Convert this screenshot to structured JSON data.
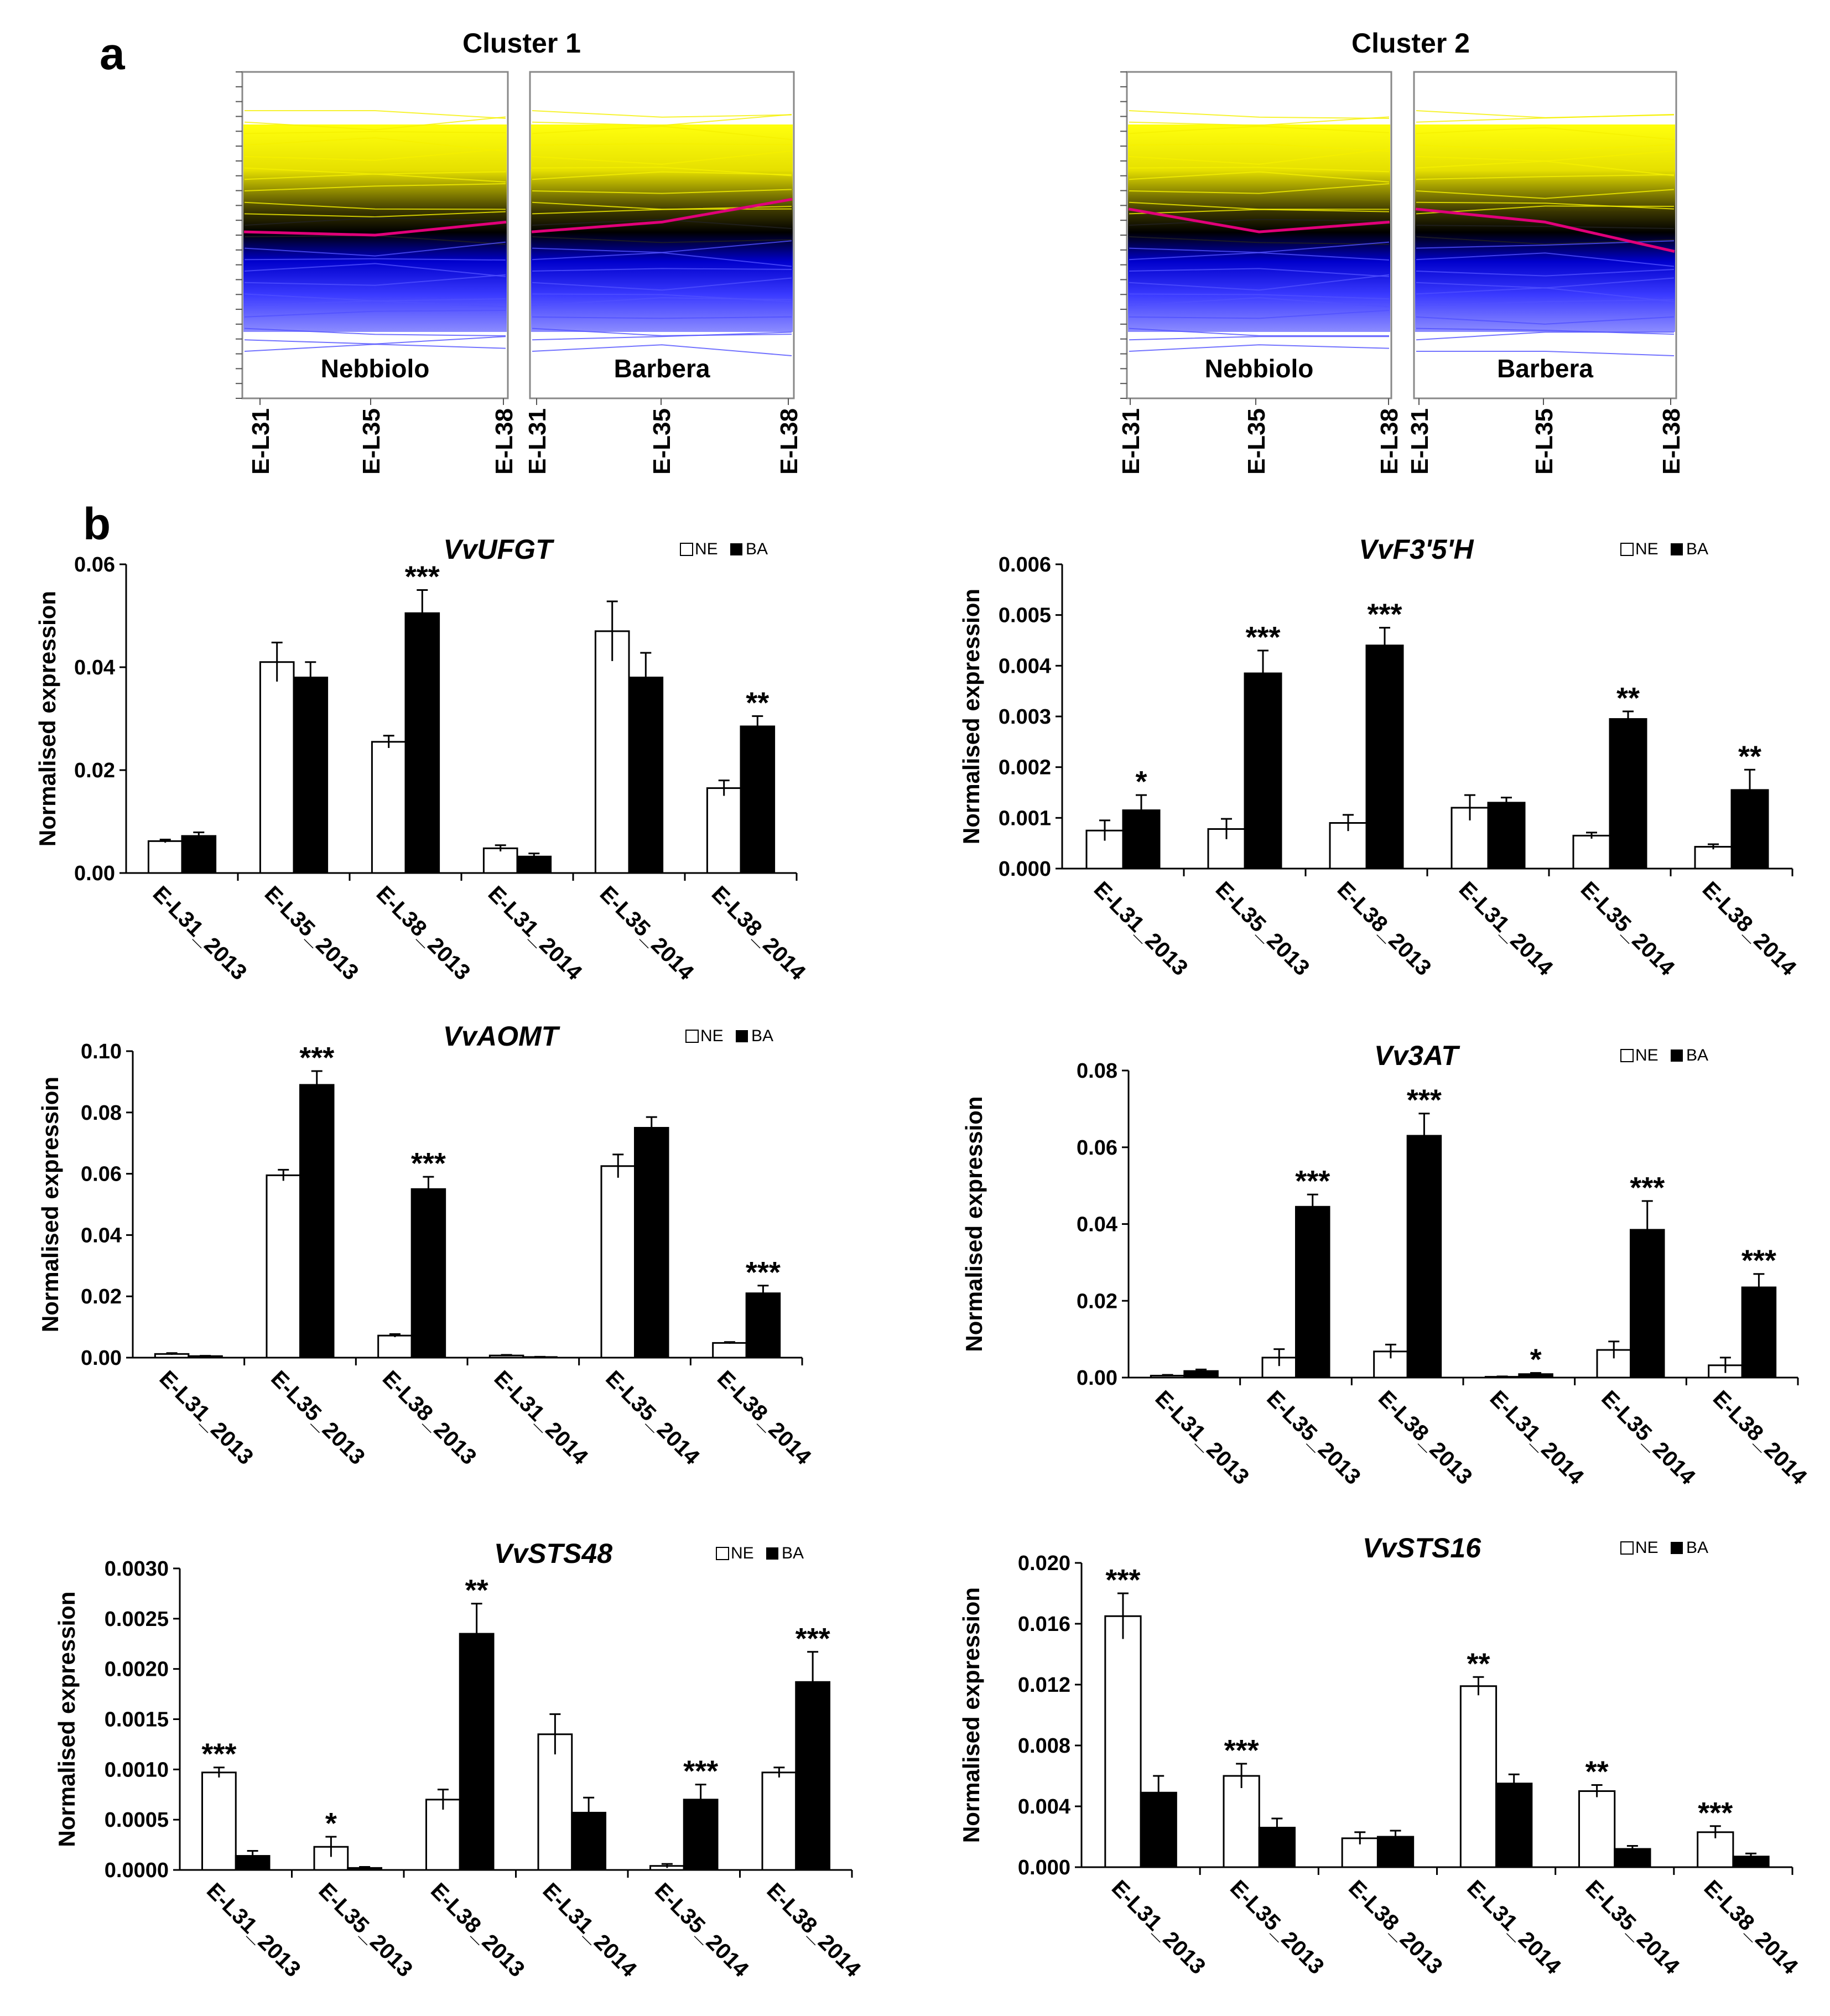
{
  "panel_a": {
    "label": "a",
    "clusters": [
      {
        "title": "Cluster 1",
        "cultivars": [
          "Nebbiolo",
          "Barbera"
        ],
        "stages": [
          "E-L31",
          "E-L35",
          "E-L38"
        ],
        "mean_profile": [
          [
            0.49,
            0.5,
            0.46
          ],
          [
            0.49,
            0.46,
            0.39
          ]
        ]
      },
      {
        "title": "Cluster 2",
        "cultivars": [
          "Nebbiolo",
          "Barbera"
        ],
        "stages": [
          "E-L31",
          "E-L35",
          "E-L38"
        ],
        "mean_profile": [
          [
            0.42,
            0.49,
            0.46
          ],
          [
            0.42,
            0.46,
            0.55
          ]
        ]
      }
    ],
    "colors": {
      "high": "#ffff00",
      "mid": "#000000",
      "low": "#0000ff",
      "mean": "#e0007a"
    }
  },
  "panel_b_label": "b",
  "legend": {
    "ne": "NE",
    "ba": "BA"
  },
  "ylabel": "Normalised expression",
  "chart_data": [
    {
      "type": "bar",
      "title": "VvUFGT",
      "categories": [
        "E-L31_2013",
        "E-L35_2013",
        "E-L38_2013",
        "E-L31_2014",
        "E-L35_2014",
        "E-L38_2014"
      ],
      "ylim": [
        0,
        0.06
      ],
      "yticks": [
        "0.00",
        "0.02",
        "0.04",
        "0.06"
      ],
      "series": [
        {
          "name": "NE",
          "values": [
            0.0062,
            0.041,
            0.0255,
            0.0048,
            0.047,
            0.0165
          ],
          "errors": [
            0.0003,
            0.0038,
            0.0012,
            0.0006,
            0.0058,
            0.0015
          ]
        },
        {
          "name": "BA",
          "values": [
            0.0072,
            0.038,
            0.0505,
            0.0032,
            0.038,
            0.0285
          ],
          "errors": [
            0.0007,
            0.003,
            0.0045,
            0.0006,
            0.0048,
            0.002
          ]
        }
      ],
      "significance": [
        "",
        "",
        "***",
        "",
        "",
        "**"
      ]
    },
    {
      "type": "bar",
      "title": "VvF3'5'H",
      "categories": [
        "E-L31_2013",
        "E-L35_2013",
        "E-L38_2013",
        "E-L31_2014",
        "E-L35_2014",
        "E-L38_2014"
      ],
      "ylim": [
        0,
        0.006
      ],
      "yticks": [
        "0.000",
        "0.001",
        "0.002",
        "0.003",
        "0.004",
        "0.005",
        "0.006"
      ],
      "series": [
        {
          "name": "NE",
          "values": [
            0.00075,
            0.00078,
            0.0009,
            0.0012,
            0.00065,
            0.00043
          ],
          "errors": [
            0.0002,
            0.0002,
            0.00016,
            0.00025,
            6e-05,
            5e-05
          ]
        },
        {
          "name": "BA",
          "values": [
            0.00115,
            0.00385,
            0.0044,
            0.0013,
            0.00295,
            0.00155
          ],
          "errors": [
            0.0003,
            0.00045,
            0.00035,
            0.0001,
            0.00015,
            0.0004
          ]
        }
      ],
      "significance": [
        "*",
        "***",
        "***",
        "",
        "**",
        "**"
      ]
    },
    {
      "type": "bar",
      "title": "VvAOMT",
      "categories": [
        "E-L31_2013",
        "E-L35_2013",
        "E-L38_2013",
        "E-L31_2014",
        "E-L35_2014",
        "E-L38_2014"
      ],
      "ylim": [
        0,
        0.1
      ],
      "yticks": [
        "0.00",
        "0.02",
        "0.04",
        "0.06",
        "0.08",
        "0.10"
      ],
      "series": [
        {
          "name": "NE",
          "values": [
            0.0012,
            0.0595,
            0.0072,
            0.0007,
            0.0625,
            0.0048
          ],
          "errors": [
            0.0003,
            0.0018,
            0.0005,
            0.0002,
            0.0038,
            0.0003
          ]
        },
        {
          "name": "BA",
          "values": [
            0.0005,
            0.089,
            0.055,
            0.0002,
            0.075,
            0.021
          ],
          "errors": [
            0.0001,
            0.0045,
            0.004,
            0.0001,
            0.0035,
            0.0025
          ]
        }
      ],
      "significance": [
        "",
        "***",
        "***",
        "",
        "",
        "***"
      ]
    },
    {
      "type": "bar",
      "title": "Vv3AT",
      "categories": [
        "E-L31_2013",
        "E-L35_2013",
        "E-L38_2013",
        "E-L31_2014",
        "E-L35_2014",
        "E-L38_2014"
      ],
      "ylim": [
        0,
        0.08
      ],
      "yticks": [
        "0.00",
        "0.02",
        "0.04",
        "0.06",
        "0.08"
      ],
      "series": [
        {
          "name": "NE",
          "values": [
            0.0005,
            0.0052,
            0.0068,
            0.0002,
            0.0072,
            0.0032
          ],
          "errors": [
            0.0002,
            0.0022,
            0.0018,
            0.0001,
            0.0022,
            0.002
          ]
        },
        {
          "name": "BA",
          "values": [
            0.0017,
            0.0445,
            0.063,
            0.0009,
            0.0385,
            0.0235
          ],
          "errors": [
            0.0004,
            0.0032,
            0.0058,
            0.0003,
            0.0075,
            0.0035
          ]
        }
      ],
      "significance": [
        "",
        "***",
        "***",
        "*",
        "***",
        "***"
      ]
    },
    {
      "type": "bar",
      "title": "VvSTS48",
      "categories": [
        "E-L31_2013",
        "E-L35_2013",
        "E-L38_2013",
        "E-L31_2014",
        "E-L35_2014",
        "E-L38_2014"
      ],
      "ylim": [
        0,
        0.003
      ],
      "yticks": [
        "0.0000",
        "0.0005",
        "0.0010",
        "0.0015",
        "0.0020",
        "0.0025",
        "0.0030"
      ],
      "series": [
        {
          "name": "NE",
          "values": [
            0.00097,
            0.00023,
            0.0007,
            0.00135,
            4e-05,
            0.00097
          ],
          "errors": [
            5e-05,
            0.0001,
            0.0001,
            0.0002,
            2e-05,
            5e-05
          ]
        },
        {
          "name": "BA",
          "values": [
            0.00014,
            2e-05,
            0.00235,
            0.00057,
            0.0007,
            0.00187
          ],
          "errors": [
            5e-05,
            1e-05,
            0.0003,
            0.00015,
            0.00015,
            0.0003
          ]
        }
      ],
      "significance": [
        "***",
        "*",
        "**",
        "",
        "***",
        "***"
      ]
    },
    {
      "type": "bar",
      "title": "VvSTS16",
      "categories": [
        "E-L31_2013",
        "E-L35_2013",
        "E-L38_2013",
        "E-L31_2014",
        "E-L35_2014",
        "E-L38_2014"
      ],
      "ylim": [
        0,
        0.02
      ],
      "yticks": [
        "0.000",
        "0.004",
        "0.008",
        "0.012",
        "0.016",
        "0.020"
      ],
      "series": [
        {
          "name": "NE",
          "values": [
            0.0165,
            0.006,
            0.0019,
            0.0119,
            0.005,
            0.0023
          ],
          "errors": [
            0.0015,
            0.0008,
            0.0004,
            0.0006,
            0.0004,
            0.0004
          ]
        },
        {
          "name": "BA",
          "values": [
            0.0049,
            0.0026,
            0.002,
            0.0055,
            0.0012,
            0.0007
          ],
          "errors": [
            0.0011,
            0.0006,
            0.0004,
            0.0006,
            0.0002,
            0.0002
          ]
        }
      ],
      "significance": [
        "***",
        "***",
        "",
        "**",
        "**",
        "***"
      ]
    }
  ]
}
